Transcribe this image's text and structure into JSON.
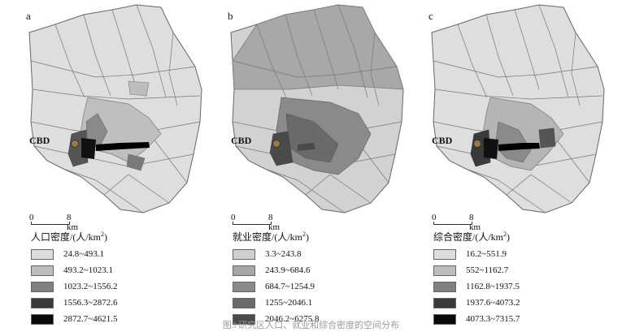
{
  "panels": [
    {
      "letter": "a",
      "cbd_label": "CBD",
      "scale": {
        "zero": "0",
        "distance": "8 km"
      },
      "legend": {
        "title": "人口密度/(人/km",
        "title_sup": "2",
        "title_end": ")",
        "classes": [
          {
            "label": "24.8~493.1",
            "color": "#dcdcdc"
          },
          {
            "label": "493.2~1023.1",
            "color": "#bdbdbd"
          },
          {
            "label": "1023.2~1556.2",
            "color": "#808080"
          },
          {
            "label": "1556.3~2872.6",
            "color": "#3a3a3a"
          },
          {
            "label": "2872.7~4621.5",
            "color": "#0a0a0a"
          }
        ]
      }
    },
    {
      "letter": "b",
      "cbd_label": "CBD",
      "scale": {
        "zero": "0",
        "distance": "8 km"
      },
      "legend": {
        "title": "就业密度/(人/km",
        "title_sup": "2",
        "title_end": ")",
        "classes": [
          {
            "label": "3.3~243.8",
            "color": "#cfcfcf"
          },
          {
            "label": "243.9~684.6",
            "color": "#a6a6a6"
          },
          {
            "label": "684.7~1254.9",
            "color": "#8a8a8a"
          },
          {
            "label": "1255~2046.1",
            "color": "#6b6b6b"
          },
          {
            "label": "2046.2~6275.8",
            "color": "#4a4a4a"
          }
        ]
      }
    },
    {
      "letter": "c",
      "cbd_label": "CBD",
      "scale": {
        "zero": "0",
        "distance": "8 km"
      },
      "legend": {
        "title": "综合密度/(人/km",
        "title_sup": "2",
        "title_end": ")",
        "classes": [
          {
            "label": "16.2~551.9",
            "color": "#dcdcdc"
          },
          {
            "label": "552~1162.7",
            "color": "#bdbdbd"
          },
          {
            "label": "1162.8~1937.5",
            "color": "#808080"
          },
          {
            "label": "1937.6~4073.2",
            "color": "#3a3a3a"
          },
          {
            "label": "4073.3~7315.7",
            "color": "#0a0a0a"
          }
        ]
      }
    }
  ],
  "caption": "图3  研究区人口、就业和综合密度的空间分布"
}
